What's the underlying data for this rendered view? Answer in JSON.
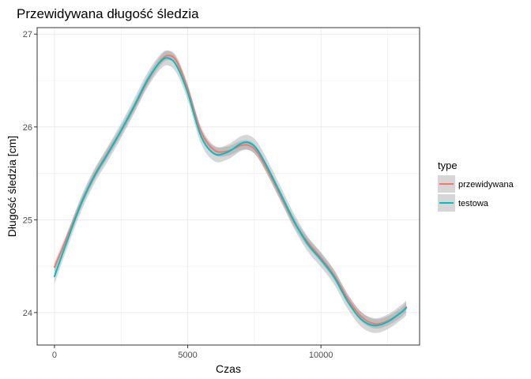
{
  "chart_data": {
    "type": "line",
    "title": "Przewidywana długość śledzia",
    "xlabel": "Czas",
    "ylabel": "Długość śledzia [cm]",
    "xlim": [
      -650,
      13700
    ],
    "ylim": [
      23.65,
      27.07
    ],
    "x_ticks": [
      0,
      5000,
      10000
    ],
    "x_tick_labels": [
      "0",
      "5000",
      "10000"
    ],
    "y_ticks": [
      24,
      25,
      26,
      27
    ],
    "y_tick_labels": [
      "24",
      "25",
      "26",
      "27"
    ],
    "grid": true,
    "legend": {
      "title": "type",
      "position": "right"
    },
    "series": [
      {
        "name": "przewidywana",
        "color": "#F8766D",
        "x": [
          0,
          500,
          1000,
          1500,
          2000,
          2500,
          3000,
          3500,
          4000,
          4300,
          4600,
          5000,
          5500,
          6000,
          6500,
          7000,
          7300,
          7600,
          8000,
          8500,
          9000,
          9500,
          10000,
          10500,
          11000,
          11500,
          12000,
          12500,
          13000,
          13200
        ],
        "values": [
          24.49,
          24.83,
          25.18,
          25.48,
          25.72,
          25.96,
          26.22,
          26.5,
          26.72,
          26.77,
          26.7,
          26.41,
          25.95,
          25.75,
          25.74,
          25.8,
          25.8,
          25.73,
          25.53,
          25.25,
          24.97,
          24.76,
          24.59,
          24.4,
          24.15,
          23.96,
          23.88,
          23.91,
          24.0,
          24.06
        ],
        "band_width": 0.05
      },
      {
        "name": "testowa",
        "color": "#00BFC4",
        "x": [
          0,
          500,
          1000,
          1500,
          2000,
          2500,
          3000,
          3500,
          4000,
          4300,
          4600,
          5000,
          5500,
          6000,
          6500,
          7000,
          7300,
          7600,
          8000,
          8500,
          9000,
          9500,
          10000,
          10500,
          11000,
          11500,
          12000,
          12500,
          13000,
          13200
        ],
        "values": [
          24.39,
          24.79,
          25.17,
          25.47,
          25.71,
          25.96,
          26.23,
          26.51,
          26.71,
          26.74,
          26.65,
          26.37,
          25.9,
          25.71,
          25.73,
          25.82,
          25.83,
          25.76,
          25.56,
          25.27,
          24.98,
          24.74,
          24.57,
          24.38,
          24.12,
          23.93,
          23.86,
          23.9,
          24.0,
          24.05
        ],
        "band_width": 0.08
      }
    ]
  },
  "colors": {
    "panel_background": "#ffffff",
    "panel_border": "#333333",
    "grid": "#ebebeb",
    "band": "#999999"
  }
}
